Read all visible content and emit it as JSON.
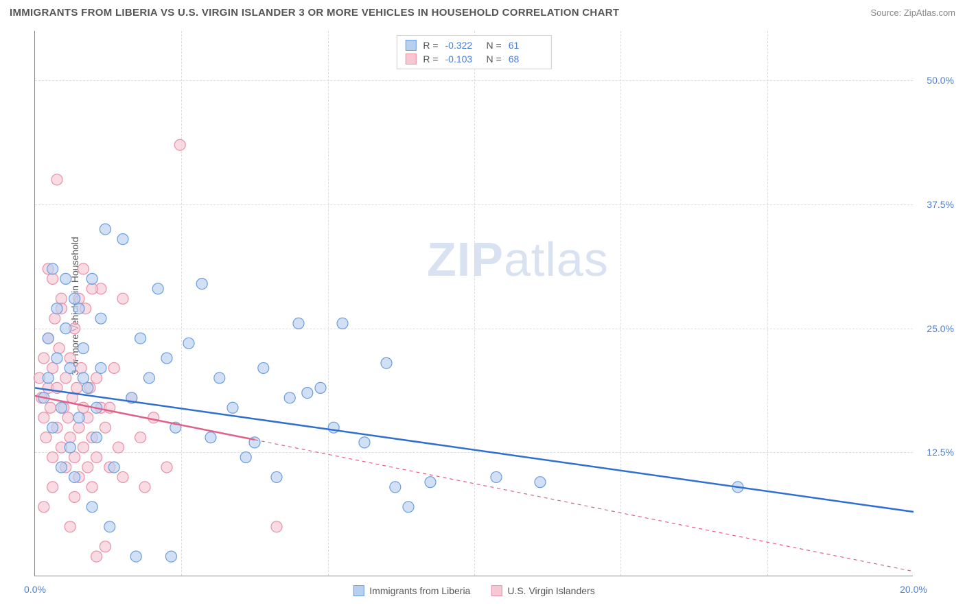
{
  "title": "IMMIGRANTS FROM LIBERIA VS U.S. VIRGIN ISLANDER 3 OR MORE VEHICLES IN HOUSEHOLD CORRELATION CHART",
  "source": "Source: ZipAtlas.com",
  "y_axis_label": "3 or more Vehicles in Household",
  "watermark_bold": "ZIP",
  "watermark_light": "atlas",
  "chart": {
    "type": "scatter-with-regression",
    "background_color": "#ffffff",
    "grid_color": "#dddddd",
    "axis_color": "#888888",
    "text_color": "#555555",
    "value_color": "#4a7fd8",
    "xlim": [
      0,
      20
    ],
    "ylim": [
      0,
      55
    ],
    "x_ticks": [
      0,
      20
    ],
    "x_tick_labels": [
      "0.0%",
      "20.0%"
    ],
    "x_grid_positions": [
      3.33,
      6.67,
      10,
      13.33,
      16.67
    ],
    "y_ticks": [
      12.5,
      25,
      37.5,
      50
    ],
    "y_tick_labels": [
      "12.5%",
      "25.0%",
      "37.5%",
      "50.0%"
    ],
    "marker_radius": 8,
    "marker_stroke_width": 1.2,
    "line_width_solid": 2.5,
    "line_width_dash": 1.2,
    "series": [
      {
        "name": "Immigrants from Liberia",
        "color_fill": "#b8d0f0",
        "color_stroke": "#6a9de0",
        "line_color": "#2f6fd0",
        "R": "-0.322",
        "N": "61",
        "regression": {
          "x1": 0,
          "y1": 19.0,
          "x2": 20,
          "y2": 6.5,
          "solid_until_x": 20
        },
        "points": [
          [
            0.2,
            18
          ],
          [
            0.3,
            20
          ],
          [
            0.4,
            15
          ],
          [
            0.5,
            22
          ],
          [
            0.6,
            17
          ],
          [
            0.7,
            25
          ],
          [
            0.8,
            13
          ],
          [
            0.9,
            28
          ],
          [
            1.0,
            16
          ],
          [
            1.1,
            23
          ],
          [
            1.2,
            19
          ],
          [
            1.3,
            30
          ],
          [
            1.4,
            14
          ],
          [
            1.5,
            26
          ],
          [
            1.6,
            35
          ],
          [
            2.0,
            34
          ],
          [
            2.2,
            18
          ],
          [
            2.4,
            24
          ],
          [
            2.6,
            20
          ],
          [
            2.8,
            29
          ],
          [
            3.0,
            22
          ],
          [
            3.2,
            15
          ],
          [
            3.5,
            23.5
          ],
          [
            3.8,
            29.5
          ],
          [
            4.0,
            14
          ],
          [
            4.2,
            20
          ],
          [
            4.5,
            17
          ],
          [
            4.8,
            12
          ],
          [
            5.0,
            13.5
          ],
          [
            5.2,
            21
          ],
          [
            5.5,
            10
          ],
          [
            5.8,
            18
          ],
          [
            6.0,
            25.5
          ],
          [
            6.2,
            18.5
          ],
          [
            6.5,
            19
          ],
          [
            6.8,
            15
          ],
          [
            7.0,
            25.5
          ],
          [
            7.5,
            13.5
          ],
          [
            8.0,
            21.5
          ],
          [
            8.2,
            9
          ],
          [
            8.5,
            7
          ],
          [
            9.0,
            9.5
          ],
          [
            10.5,
            10
          ],
          [
            11.5,
            9.5
          ],
          [
            16.0,
            9
          ],
          [
            1.8,
            11
          ],
          [
            2.3,
            2
          ],
          [
            3.1,
            2
          ],
          [
            0.6,
            11
          ],
          [
            0.9,
            10
          ],
          [
            1.3,
            7
          ],
          [
            1.7,
            5
          ],
          [
            0.4,
            31
          ],
          [
            0.7,
            30
          ],
          [
            1.0,
            27
          ],
          [
            1.5,
            21
          ],
          [
            0.3,
            24
          ],
          [
            0.5,
            27
          ],
          [
            0.8,
            21
          ],
          [
            1.1,
            20
          ],
          [
            1.4,
            17
          ]
        ]
      },
      {
        "name": "U.S. Virgin Islanders",
        "color_fill": "#f5c8d4",
        "color_stroke": "#e890a8",
        "line_color": "#e06088",
        "R": "-0.103",
        "N": "68",
        "regression": {
          "x1": 0,
          "y1": 18.2,
          "x2": 20,
          "y2": 0.5,
          "solid_until_x": 5
        },
        "points": [
          [
            0.1,
            20
          ],
          [
            0.15,
            18
          ],
          [
            0.2,
            16
          ],
          [
            0.2,
            22
          ],
          [
            0.25,
            14
          ],
          [
            0.3,
            19
          ],
          [
            0.3,
            24
          ],
          [
            0.35,
            17
          ],
          [
            0.4,
            21
          ],
          [
            0.4,
            12
          ],
          [
            0.45,
            26
          ],
          [
            0.5,
            15
          ],
          [
            0.5,
            19
          ],
          [
            0.55,
            23
          ],
          [
            0.6,
            13
          ],
          [
            0.6,
            28
          ],
          [
            0.65,
            17
          ],
          [
            0.7,
            20
          ],
          [
            0.7,
            11
          ],
          [
            0.75,
            16
          ],
          [
            0.8,
            14
          ],
          [
            0.8,
            22
          ],
          [
            0.85,
            18
          ],
          [
            0.9,
            12
          ],
          [
            0.9,
            25
          ],
          [
            0.95,
            19
          ],
          [
            1.0,
            15
          ],
          [
            1.0,
            10
          ],
          [
            1.05,
            21
          ],
          [
            1.1,
            17
          ],
          [
            1.1,
            13
          ],
          [
            1.15,
            27
          ],
          [
            1.2,
            16
          ],
          [
            1.2,
            11
          ],
          [
            1.25,
            19
          ],
          [
            1.3,
            14
          ],
          [
            1.3,
            9
          ],
          [
            1.4,
            20
          ],
          [
            1.4,
            12
          ],
          [
            1.5,
            17
          ],
          [
            1.5,
            29
          ],
          [
            1.6,
            15
          ],
          [
            1.7,
            11
          ],
          [
            1.8,
            21
          ],
          [
            1.9,
            13
          ],
          [
            2.0,
            28
          ],
          [
            2.0,
            10
          ],
          [
            2.2,
            18
          ],
          [
            2.4,
            14
          ],
          [
            2.5,
            9
          ],
          [
            2.7,
            16
          ],
          [
            3.0,
            11
          ],
          [
            3.3,
            43.5
          ],
          [
            0.5,
            40
          ],
          [
            0.4,
            30
          ],
          [
            0.6,
            27
          ],
          [
            0.3,
            31
          ],
          [
            1.0,
            28
          ],
          [
            1.4,
            2
          ],
          [
            0.8,
            5
          ],
          [
            1.6,
            3
          ],
          [
            0.2,
            7
          ],
          [
            0.4,
            9
          ],
          [
            0.9,
            8
          ],
          [
            5.5,
            5
          ],
          [
            1.1,
            31
          ],
          [
            1.3,
            29
          ],
          [
            1.7,
            17
          ]
        ]
      }
    ]
  },
  "legend_top": {
    "r_label": "R =",
    "n_label": "N ="
  }
}
